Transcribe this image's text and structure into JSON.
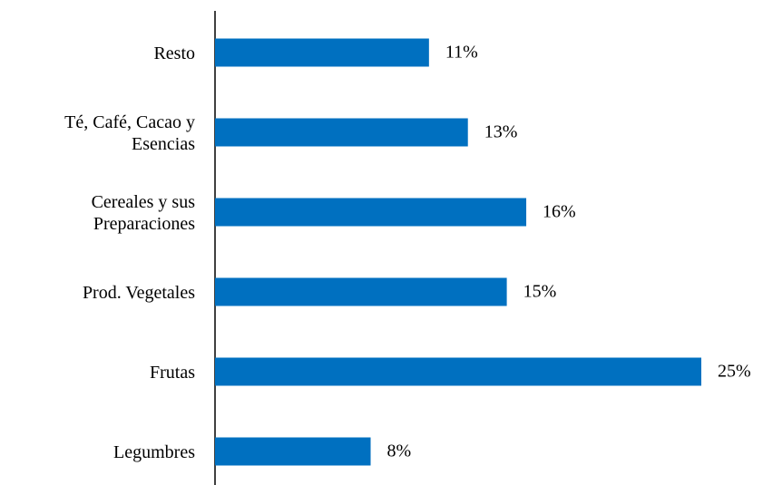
{
  "chart_data": {
    "type": "bar",
    "orientation": "horizontal",
    "categories": [
      "Resto",
      "Té, Café, Cacao y Esencias",
      "Cereales y sus Preparaciones",
      "Prod. Vegetales",
      "Frutas",
      "Legumbres"
    ],
    "values": [
      11,
      13,
      16,
      15,
      25,
      8
    ],
    "value_labels": [
      "11%",
      "13%",
      "16%",
      "15%",
      "25%",
      "8%"
    ],
    "color": "#0070c0"
  }
}
